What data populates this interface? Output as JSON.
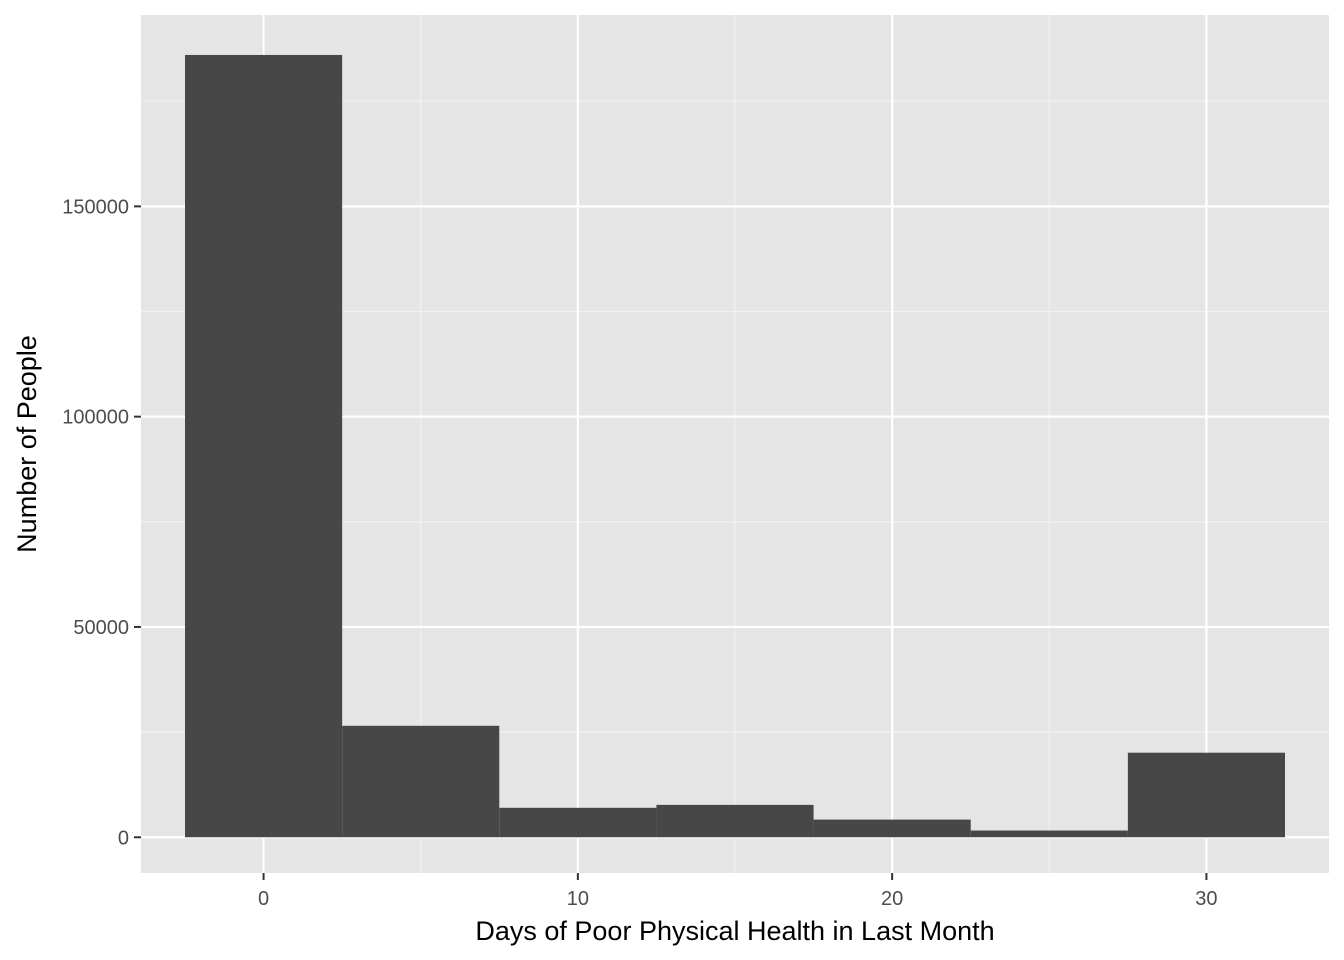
{
  "chart_data": {
    "type": "bar",
    "title": "",
    "xlabel": "Days of Poor Physical Health in Last Month",
    "ylabel": "Number of People",
    "bin_width": 5,
    "bins": [
      {
        "center": 0,
        "count": 186000
      },
      {
        "center": 5,
        "count": 26500
      },
      {
        "center": 10,
        "count": 7000
      },
      {
        "center": 15,
        "count": 7700
      },
      {
        "center": 20,
        "count": 4200
      },
      {
        "center": 25,
        "count": 1600
      },
      {
        "center": 30,
        "count": 20100
      }
    ],
    "xlim": [
      -3.9,
      33.9
    ],
    "ylim": [
      -8500,
      195500
    ],
    "x_ticks": [
      0,
      10,
      20,
      30
    ],
    "x_tick_labels": [
      "0",
      "10",
      "20",
      "30"
    ],
    "y_ticks": [
      0,
      50000,
      100000,
      150000
    ],
    "y_tick_labels": [
      "0",
      "50000",
      "100000",
      "150000"
    ],
    "grid": true,
    "legend": "none",
    "colors": {
      "panel_background": "#e5e5e5",
      "grid_major": "#ffffff",
      "grid_minor": "#f2f2f2",
      "bar_fill": "#474747",
      "tick_text": "#4d4d4d",
      "tick_mark": "#333333",
      "title_text": "#000000"
    }
  }
}
